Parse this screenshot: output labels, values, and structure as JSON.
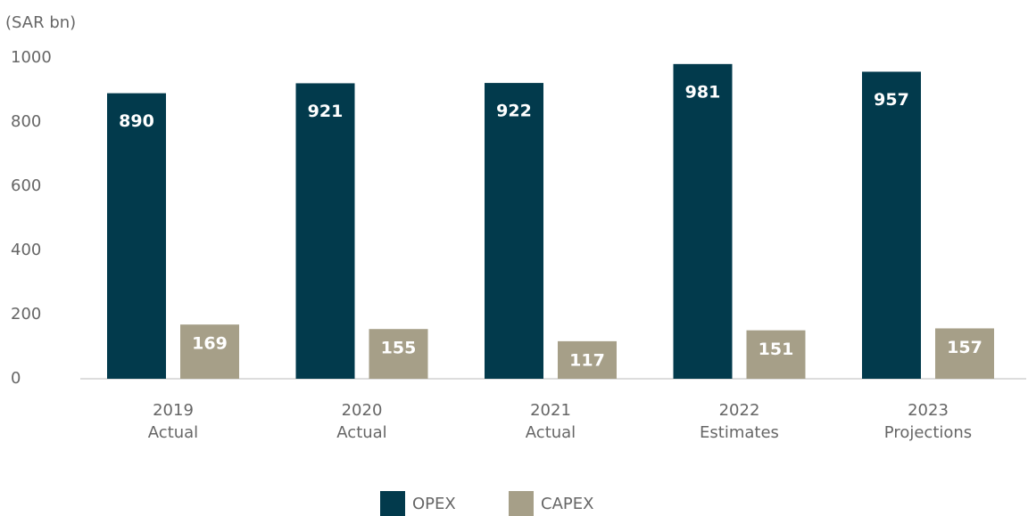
{
  "chart_data": {
    "type": "bar",
    "y_label": "(SAR bn)",
    "categories": [
      "2019",
      "2020",
      "2021",
      "2022",
      "2023"
    ],
    "category_notes": [
      "Actual",
      "Actual",
      "Actual",
      "Estimates",
      "Projections"
    ],
    "series": [
      {
        "name": "OPEX",
        "color": "#023a4c",
        "values": [
          890,
          921,
          922,
          981,
          957
        ]
      },
      {
        "name": "CAPEX",
        "color": "#a69f88",
        "values": [
          169,
          155,
          117,
          151,
          157
        ]
      }
    ],
    "ylim": [
      0,
      1000
    ],
    "yticks": [
      0,
      200,
      400,
      600,
      800,
      1000
    ],
    "grid": false,
    "legend": "bottom"
  }
}
